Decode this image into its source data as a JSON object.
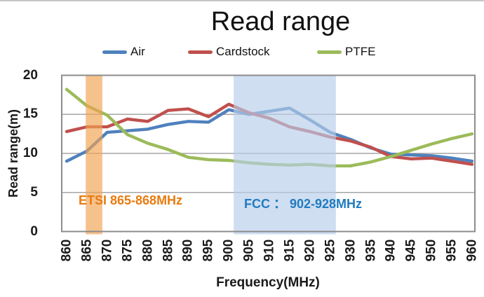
{
  "chart": {
    "title": "Read range",
    "x_axis_title": "Frequency(MHz)",
    "y_axis_title": "Read range(m)"
  },
  "chart_data": {
    "type": "line",
    "title": "Read range",
    "xlabel": "Frequency(MHz)",
    "ylabel": "Read range(m)",
    "x": [
      860,
      865,
      870,
      875,
      880,
      885,
      890,
      895,
      900,
      905,
      910,
      915,
      920,
      925,
      930,
      935,
      940,
      945,
      950,
      955,
      960
    ],
    "ylim": [
      0,
      20
    ],
    "yticks": [
      0,
      5,
      10,
      15,
      20
    ],
    "grid": true,
    "grid_color": "#A6A6A6",
    "border_color": "#8C8C8C",
    "legend_position": "top",
    "series": [
      {
        "name": "Air",
        "color": "#4F81BD",
        "values": [
          9.0,
          10.3,
          12.7,
          12.9,
          13.1,
          13.7,
          14.1,
          14.0,
          15.6,
          15.0,
          15.4,
          15.8,
          14.3,
          12.7,
          11.8,
          10.7,
          9.9,
          9.8,
          9.7,
          9.4,
          9.0
        ]
      },
      {
        "name": "Cardstock",
        "color": "#C0504D",
        "values": [
          12.8,
          13.4,
          13.4,
          14.4,
          14.1,
          15.5,
          15.7,
          14.7,
          16.3,
          15.2,
          14.5,
          13.4,
          12.8,
          12.1,
          11.6,
          10.8,
          9.6,
          9.3,
          9.4,
          9.0,
          8.6
        ]
      },
      {
        "name": "PTFE",
        "color": "#9BBB59",
        "values": [
          18.2,
          16.1,
          14.9,
          12.4,
          11.3,
          10.5,
          9.5,
          9.2,
          9.1,
          8.8,
          8.6,
          8.5,
          8.6,
          8.4,
          8.4,
          8.9,
          9.6,
          10.4,
          11.2,
          11.9,
          12.5
        ]
      }
    ],
    "bands": [
      {
        "label": "ETSI 865-868MHz",
        "x_from": 864.7,
        "x_to": 868.8,
        "fill": "#F1A351",
        "fill_opacity": 0.66,
        "label_color": "#E97B10"
      },
      {
        "label": "FCC ：  902-928MHz",
        "x_from": 901.2,
        "x_to": 926.4,
        "fill": "#B6CDEA",
        "fill_opacity": 0.66,
        "label_color": "#1F7BC0"
      }
    ]
  }
}
